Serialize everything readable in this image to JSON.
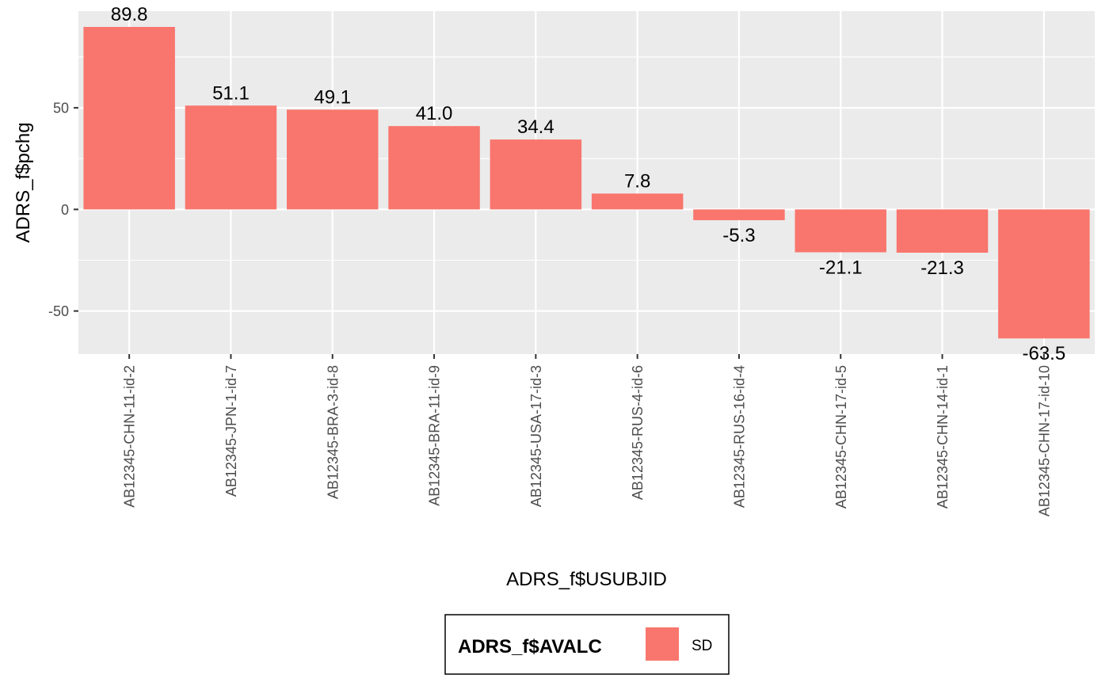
{
  "chart_data": {
    "type": "bar",
    "xlabel": "ADRS_f$USUBJID",
    "ylabel": "ADRS_f$pchg",
    "categories": [
      "AB12345-CHN-11-id-2",
      "AB12345-JPN-1-id-7",
      "AB12345-BRA-3-id-8",
      "AB12345-BRA-11-id-9",
      "AB12345-USA-17-id-3",
      "AB12345-RUS-4-id-6",
      "AB12345-RUS-16-id-4",
      "AB12345-CHN-17-id-5",
      "AB12345-CHN-14-id-1",
      "AB12345-CHN-17-id-10"
    ],
    "series": [
      {
        "name": "SD",
        "values": [
          89.8,
          51.1,
          49.1,
          41.0,
          34.4,
          7.8,
          -5.3,
          -21.1,
          -21.3,
          -63.5
        ],
        "labels": [
          "89.8",
          "51.1",
          "49.1",
          "41.0",
          "34.4",
          "7.8",
          "-5.3",
          "-21.1",
          "-21.3",
          "-63.5"
        ]
      }
    ],
    "ylim": [
      -71.2,
      97.6
    ],
    "yticks": [
      -50,
      0,
      50
    ],
    "ytick_labels": [
      "-50",
      "0",
      "50"
    ],
    "grid": true,
    "legend": {
      "title": "ADRS_f$AVALC",
      "entries": [
        "SD"
      ],
      "position": "bottom"
    },
    "colors": {
      "bar": "#F8766D",
      "panel_background": "#EBEBEB",
      "grid": "#FFFFFF"
    }
  }
}
